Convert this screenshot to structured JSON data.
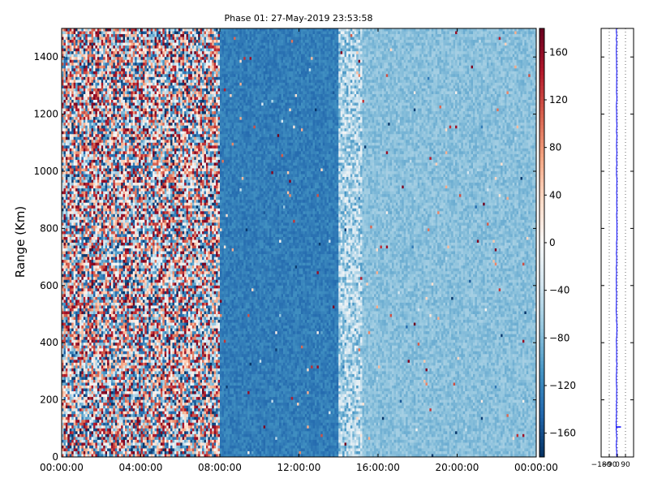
{
  "chart_data": [
    {
      "type": "heatmap",
      "title": "Phase 01: 27-May-2019 23:53:58",
      "xlabel": "",
      "ylabel": "Range (Km)",
      "x_ticks": [
        "00:00:00",
        "04:00:00",
        "08:00:00",
        "12:00:00",
        "16:00:00",
        "20:00:00",
        "00:00:00"
      ],
      "x_tick_hours": [
        0,
        4,
        8,
        12,
        16,
        20,
        24
      ],
      "y_ticks": [
        0,
        200,
        400,
        600,
        800,
        1000,
        1200,
        1400
      ],
      "ylim": [
        0,
        1500
      ],
      "xlim_hours": [
        0,
        24
      ],
      "colorbar": {
        "range": [
          -180,
          180
        ],
        "ticks": [
          160,
          120,
          80,
          40,
          0,
          -40,
          -80,
          -120,
          -160
        ],
        "colormap": "RdBu_r"
      },
      "regions": [
        {
          "start_hour": 0,
          "end_hour": 8,
          "description": "random phase noise",
          "mean_phase": 0,
          "spread": 180
        },
        {
          "start_hour": 8,
          "end_hour": 14,
          "description": "strong negative phase",
          "mean_phase": -125,
          "spread": 15
        },
        {
          "start_hour": 14,
          "end_hour": 15.2,
          "description": "noisy transition",
          "mean_phase": -55,
          "spread": 50
        },
        {
          "start_hour": 15.2,
          "end_hour": 24,
          "description": "moderate negative phase",
          "mean_phase": -75,
          "spread": 15
        }
      ]
    },
    {
      "type": "line",
      "title": "",
      "xlabel": "",
      "ylabel": "",
      "x_ticks": [
        -180,
        -90,
        0,
        90
      ],
      "x_tick_labels": [
        "−180",
        "−90",
        "0",
        "90"
      ],
      "xlim": [
        -180,
        180
      ],
      "ylim": [
        0,
        1500
      ],
      "line_color": "#0000ff",
      "profile": [
        {
          "range": 0,
          "phase": -5
        },
        {
          "range": 40,
          "phase": -10
        },
        {
          "range": 80,
          "phase": -8
        },
        {
          "range": 110,
          "phase": -15
        },
        {
          "range": 130,
          "phase": -12
        },
        {
          "range": 160,
          "phase": -10
        },
        {
          "range": 200,
          "phase": -9
        },
        {
          "range": 300,
          "phase": -8
        },
        {
          "range": 400,
          "phase": -9
        },
        {
          "range": 440,
          "phase": -6
        },
        {
          "range": 500,
          "phase": -10
        },
        {
          "range": 600,
          "phase": -12
        },
        {
          "range": 700,
          "phase": -10
        },
        {
          "range": 800,
          "phase": -5
        },
        {
          "range": 900,
          "phase": -7
        },
        {
          "range": 1000,
          "phase": -8
        },
        {
          "range": 1100,
          "phase": -7
        },
        {
          "range": 1200,
          "phase": -9
        },
        {
          "range": 1300,
          "phase": -8
        },
        {
          "range": 1400,
          "phase": -9
        },
        {
          "range": 1500,
          "phase": -10
        }
      ],
      "spike": {
        "range": 105,
        "phase_from": -10,
        "phase_to": 40
      }
    }
  ]
}
